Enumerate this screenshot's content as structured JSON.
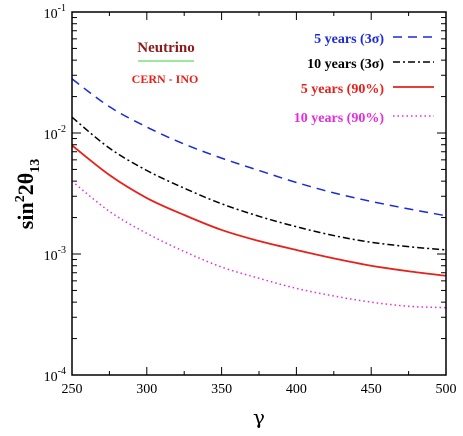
{
  "chart_data": {
    "type": "line",
    "xlabel": "γ",
    "ylabel": "sin²2θ₁₃",
    "ylabel_parts": {
      "sup": "2",
      "base": "sin",
      "mid": "2θ",
      "sub": "13"
    },
    "xlim": [
      250,
      500
    ],
    "ylim": [
      0.0001,
      0.1
    ],
    "yscale": "log",
    "x_ticks": [
      250,
      300,
      350,
      400,
      450,
      500
    ],
    "x_tick_labels": [
      "250",
      "300",
      "350",
      "400",
      "450",
      "500"
    ],
    "y_ticks": [
      0.1,
      0.01,
      0.001,
      0.0001
    ],
    "y_tick_labels": [
      {
        "base": "10",
        "exp": "-1"
      },
      {
        "base": "10",
        "exp": "-2"
      },
      {
        "base": "10",
        "exp": "-3"
      },
      {
        "base": "10",
        "exp": "-4"
      }
    ],
    "legend_position": "top-right",
    "annotations": [
      {
        "text": "Neutrino",
        "color": "#8b1a1a",
        "underline_color": "#7fe07f"
      },
      {
        "text": "CERN - INO",
        "color": "#e8201a"
      }
    ],
    "series": [
      {
        "name": "5 years (3σ)",
        "color": "#1a2adb",
        "dash": "dashed",
        "x": [
          250,
          275,
          300,
          325,
          350,
          375,
          400,
          425,
          450,
          475,
          500
        ],
        "y": [
          0.028,
          0.0165,
          0.0112,
          0.0081,
          0.0062,
          0.0049,
          0.0039,
          0.0032,
          0.00272,
          0.00236,
          0.00207
        ]
      },
      {
        "name": "10 years (3σ)",
        "color": "#000000",
        "dash": "dash-dot",
        "x": [
          250,
          275,
          300,
          325,
          350,
          375,
          400,
          425,
          450,
          475,
          500
        ],
        "y": [
          0.0135,
          0.0075,
          0.0049,
          0.0035,
          0.0026,
          0.00205,
          0.00168,
          0.00142,
          0.00125,
          0.00115,
          0.00108
        ]
      },
      {
        "name": "5 years (90%)",
        "color": "#e8201a",
        "dash": "solid",
        "x": [
          250,
          275,
          300,
          325,
          350,
          375,
          400,
          425,
          450,
          475,
          500
        ],
        "y": [
          0.0079,
          0.0045,
          0.0029,
          0.0021,
          0.00158,
          0.00128,
          0.00108,
          0.00092,
          0.0008,
          0.00072,
          0.00066
        ]
      },
      {
        "name": "10 years (90%)",
        "color": "#e62ae0",
        "dash": "dotted",
        "x": [
          250,
          275,
          300,
          325,
          350,
          375,
          400,
          425,
          450,
          475,
          500
        ],
        "y": [
          0.004,
          0.00225,
          0.00148,
          0.00105,
          0.00078,
          0.00063,
          0.00052,
          0.00045,
          0.0004,
          0.00037,
          0.00036
        ]
      }
    ]
  }
}
